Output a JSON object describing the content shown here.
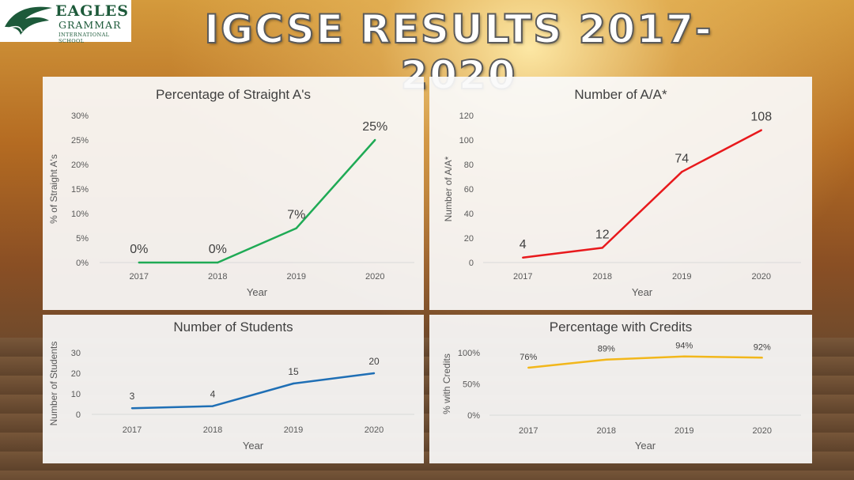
{
  "page": {
    "title": "IGCSE RESULTS 2017-2020",
    "logo": {
      "line1": "EAGLES",
      "line2": "GRAMMAR",
      "line3": "INTERNATIONAL SCHOOL"
    }
  },
  "chart_data": [
    {
      "id": "straight-a",
      "type": "line",
      "title": "Percentage of Straight A's",
      "xlabel": "Year",
      "ylabel": "% of Straight A's",
      "categories": [
        "2017",
        "2018",
        "2019",
        "2020"
      ],
      "values": [
        0,
        0,
        7,
        25
      ],
      "data_labels": [
        "0%",
        "0%",
        "7%",
        "25%"
      ],
      "yticks": [
        "0%",
        "5%",
        "10%",
        "15%",
        "20%",
        "25%",
        "30%"
      ],
      "ylim": [
        0,
        30
      ],
      "color": "#1faa55"
    },
    {
      "id": "num-a",
      "type": "line",
      "title": "Number of A/A*",
      "xlabel": "Year",
      "ylabel": "Number of A/A*",
      "categories": [
        "2017",
        "2018",
        "2019",
        "2020"
      ],
      "values": [
        4,
        12,
        74,
        108
      ],
      "data_labels": [
        "4",
        "12",
        "74",
        "108"
      ],
      "yticks": [
        "0",
        "20",
        "40",
        "60",
        "80",
        "100",
        "120"
      ],
      "ylim": [
        0,
        120
      ],
      "color": "#e8191c"
    },
    {
      "id": "students",
      "type": "line",
      "title": "Number of Students",
      "xlabel": "Year",
      "ylabel": "Number of Students",
      "categories": [
        "2017",
        "2018",
        "2019",
        "2020"
      ],
      "values": [
        3,
        4,
        15,
        20
      ],
      "data_labels": [
        "3",
        "4",
        "15",
        "20"
      ],
      "yticks": [
        "0",
        "10",
        "20",
        "30"
      ],
      "ylim": [
        0,
        30
      ],
      "color": "#1f6fb5"
    },
    {
      "id": "credits",
      "type": "line",
      "title": "Percentage with Credits",
      "xlabel": "Year",
      "ylabel": "% with Credits",
      "categories": [
        "2017",
        "2018",
        "2019",
        "2020"
      ],
      "values": [
        76,
        89,
        94,
        92
      ],
      "data_labels": [
        "76%",
        "89%",
        "94%",
        "92%"
      ],
      "yticks": [
        "0%",
        "50%",
        "100%"
      ],
      "ylim": [
        0,
        100
      ],
      "color": "#f2b71b"
    }
  ]
}
